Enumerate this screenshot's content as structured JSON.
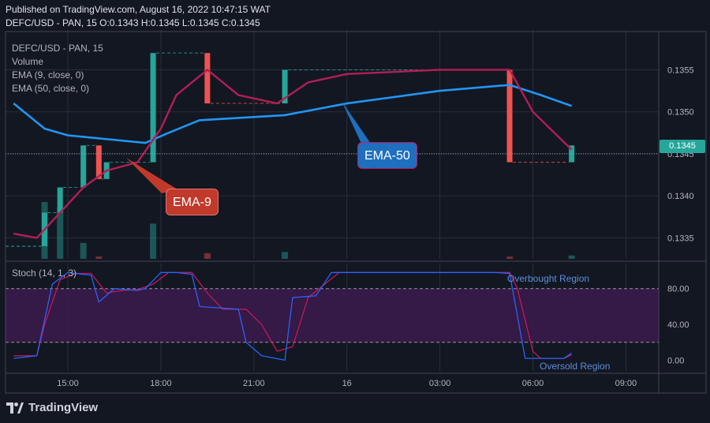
{
  "header": {
    "published": "Published on TradingView.com, August 16, 2022 10:47:15 WAT",
    "symbol_line": "DEFC/USD - PAN, 15  O:0.1343 H:0.1345 L:0.1345 C:0.1345"
  },
  "legend": {
    "symbol": "DEFC/USD - PAN, 15",
    "volume": "Volume",
    "ema9": "EMA (9, close, 0)",
    "ema50": "EMA (50, close, 0)",
    "stoch": "Stoch (14, 1, 3)"
  },
  "annotations": {
    "ema9_label": "EMA-9",
    "ema50_label": "EMA-50",
    "overbought": "Overbought Region",
    "oversold": "Oversold Region"
  },
  "last_price_label": "0.1345",
  "brand": "TradingView",
  "colors": {
    "bullish": "#26a69a",
    "bearish": "#ef5350",
    "ema9": "#b21e55",
    "ema50": "#2196f3",
    "stoch_k": "#2962ff",
    "stoch_d": "#c2185b",
    "stoch_band": "#3a1a4a",
    "ema9_badge": "#c0392b",
    "ema50_badge": "#1e6fc0"
  },
  "chart_data": [
    {
      "type": "candlestick",
      "title": "DEFC/USD - PAN, 15",
      "x_ticks": [
        "15:00",
        "18:00",
        "21:00",
        "16",
        "03:00",
        "06:00",
        "09:00"
      ],
      "y_ticks": [
        "0.1335",
        "0.1340",
        "0.1345",
        "0.1350",
        "0.1355"
      ],
      "ylim": [
        0.13325,
        0.13588
      ],
      "candles": [
        {
          "x": "14:15",
          "o": 0.1334,
          "c": 0.1338,
          "dir": "up"
        },
        {
          "x": "14:45",
          "o": 0.1338,
          "c": 0.1341,
          "dir": "up"
        },
        {
          "x": "15:30",
          "o": 0.1341,
          "c": 0.1346,
          "dir": "up"
        },
        {
          "x": "16:00",
          "o": 0.1346,
          "c": 0.1342,
          "dir": "down"
        },
        {
          "x": "16:15",
          "o": 0.1342,
          "c": 0.1344,
          "dir": "up"
        },
        {
          "x": "17:45",
          "o": 0.1344,
          "c": 0.1357,
          "dir": "up"
        },
        {
          "x": "19:30",
          "o": 0.1357,
          "c": 0.1351,
          "dir": "down"
        },
        {
          "x": "22:00",
          "o": 0.1351,
          "c": 0.1355,
          "dir": "up"
        },
        {
          "x": "05:15",
          "o": 0.1355,
          "c": 0.1344,
          "dir": "down"
        },
        {
          "x": "07:15",
          "o": 0.1344,
          "c": 0.1346,
          "dir": "up"
        }
      ],
      "ema9": [
        {
          "x": "13:15",
          "y": 0.13355
        },
        {
          "x": "14:00",
          "y": 0.1335
        },
        {
          "x": "14:30",
          "y": 0.1337
        },
        {
          "x": "15:00",
          "y": 0.1339
        },
        {
          "x": "15:30",
          "y": 0.1341
        },
        {
          "x": "16:15",
          "y": 0.1343
        },
        {
          "x": "17:15",
          "y": 0.1344
        },
        {
          "x": "18:00",
          "y": 0.1348
        },
        {
          "x": "18:30",
          "y": 0.1352
        },
        {
          "x": "19:30",
          "y": 0.1355
        },
        {
          "x": "20:30",
          "y": 0.1352
        },
        {
          "x": "21:45",
          "y": 0.1351
        },
        {
          "x": "22:45",
          "y": 0.13535
        },
        {
          "x": "00:00",
          "y": 0.13545
        },
        {
          "x": "03:00",
          "y": 0.1355
        },
        {
          "x": "05:15",
          "y": 0.1355
        },
        {
          "x": "06:00",
          "y": 0.135
        },
        {
          "x": "07:15",
          "y": 0.13455
        }
      ],
      "ema50": [
        {
          "x": "13:15",
          "y": 0.1351
        },
        {
          "x": "14:15",
          "y": 0.1348
        },
        {
          "x": "15:00",
          "y": 0.13472
        },
        {
          "x": "17:30",
          "y": 0.13463
        },
        {
          "x": "18:15",
          "y": 0.13475
        },
        {
          "x": "19:15",
          "y": 0.1349
        },
        {
          "x": "22:00",
          "y": 0.13496
        },
        {
          "x": "00:00",
          "y": 0.1351
        },
        {
          "x": "03:00",
          "y": 0.13525
        },
        {
          "x": "05:15",
          "y": 0.13532
        },
        {
          "x": "06:15",
          "y": 0.1352
        },
        {
          "x": "07:15",
          "y": 0.13507
        }
      ],
      "volume": [
        {
          "x": "14:15",
          "v": 1.0,
          "dir": "up"
        },
        {
          "x": "14:45",
          "v": 0.9,
          "dir": "up"
        },
        {
          "x": "15:30",
          "v": 0.28,
          "dir": "up"
        },
        {
          "x": "16:00",
          "v": 0.04,
          "dir": "down"
        },
        {
          "x": "17:45",
          "v": 0.62,
          "dir": "up"
        },
        {
          "x": "19:30",
          "v": 0.1,
          "dir": "down"
        },
        {
          "x": "22:00",
          "v": 0.12,
          "dir": "up"
        },
        {
          "x": "05:15",
          "v": 0.04,
          "dir": "down"
        },
        {
          "x": "07:15",
          "v": 0.06,
          "dir": "up"
        }
      ]
    },
    {
      "type": "line",
      "title": "Stoch (14, 1, 3)",
      "y_ticks": [
        "80.00",
        "40.00",
        "0.00"
      ],
      "ylim": [
        -12,
        108
      ],
      "bands": {
        "upper": 80,
        "lower": 20
      },
      "series": [
        {
          "name": "%K",
          "points": [
            {
              "x": "13:15",
              "y": 2
            },
            {
              "x": "14:00",
              "y": 5
            },
            {
              "x": "14:30",
              "y": 85
            },
            {
              "x": "15:00",
              "y": 98
            },
            {
              "x": "15:45",
              "y": 95
            },
            {
              "x": "16:00",
              "y": 65
            },
            {
              "x": "16:30",
              "y": 80
            },
            {
              "x": "17:15",
              "y": 78
            },
            {
              "x": "17:30",
              "y": 80
            },
            {
              "x": "18:00",
              "y": 98
            },
            {
              "x": "18:30",
              "y": 98
            },
            {
              "x": "19:00",
              "y": 96
            },
            {
              "x": "19:15",
              "y": 60
            },
            {
              "x": "20:30",
              "y": 57
            },
            {
              "x": "20:45",
              "y": 20
            },
            {
              "x": "21:15",
              "y": 5
            },
            {
              "x": "22:00",
              "y": 0
            },
            {
              "x": "22:15",
              "y": 70
            },
            {
              "x": "23:00",
              "y": 72
            },
            {
              "x": "23:30",
              "y": 98
            },
            {
              "x": "04:45",
              "y": 98
            },
            {
              "x": "05:15",
              "y": 97
            },
            {
              "x": "05:45",
              "y": 2
            },
            {
              "x": "07:00",
              "y": 2
            },
            {
              "x": "07:15",
              "y": 8
            }
          ]
        },
        {
          "name": "%D",
          "points": [
            {
              "x": "13:15",
              "y": 5
            },
            {
              "x": "14:00",
              "y": 5
            },
            {
              "x": "14:15",
              "y": 40
            },
            {
              "x": "14:45",
              "y": 90
            },
            {
              "x": "15:15",
              "y": 97
            },
            {
              "x": "15:45",
              "y": 97
            },
            {
              "x": "16:15",
              "y": 75
            },
            {
              "x": "16:45",
              "y": 78
            },
            {
              "x": "17:15",
              "y": 79
            },
            {
              "x": "17:45",
              "y": 85
            },
            {
              "x": "18:15",
              "y": 98
            },
            {
              "x": "19:00",
              "y": 98
            },
            {
              "x": "19:30",
              "y": 75
            },
            {
              "x": "20:00",
              "y": 57
            },
            {
              "x": "20:45",
              "y": 57
            },
            {
              "x": "21:15",
              "y": 40
            },
            {
              "x": "21:45",
              "y": 10
            },
            {
              "x": "22:15",
              "y": 15
            },
            {
              "x": "22:45",
              "y": 70
            },
            {
              "x": "23:45",
              "y": 98
            },
            {
              "x": "05:15",
              "y": 98
            },
            {
              "x": "05:30",
              "y": 80
            },
            {
              "x": "06:00",
              "y": 10
            },
            {
              "x": "06:15",
              "y": 2
            },
            {
              "x": "07:00",
              "y": 2
            },
            {
              "x": "07:15",
              "y": 6
            }
          ]
        }
      ]
    }
  ]
}
